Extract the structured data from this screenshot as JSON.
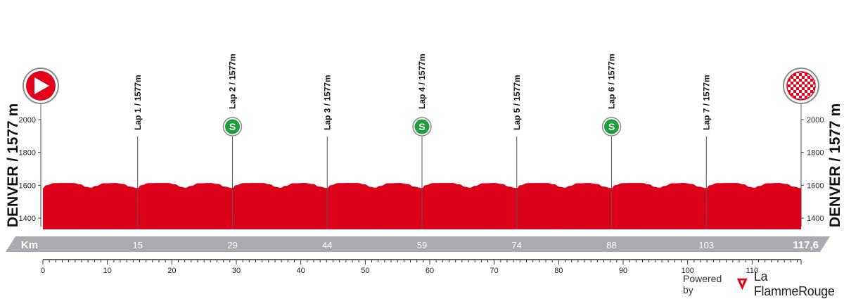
{
  "chart_data": {
    "type": "area",
    "start_label": "DENVER / 1577 m",
    "finish_label": "DENVER / 1577 m",
    "ylim": [
      1330,
      2070
    ],
    "y_ticks": [
      1400,
      1600,
      1800,
      2000
    ],
    "xlim": [
      0,
      117.6
    ],
    "x_ticks": [
      0,
      10,
      20,
      30,
      40,
      50,
      60,
      70,
      80,
      90,
      100,
      110
    ],
    "km_bar_label": "Km",
    "total_distance_label": "117,6",
    "profile": {
      "x": [
        0,
        1,
        3.5,
        6.5,
        9.5,
        11.5,
        13.5,
        14.9,
        16.5,
        19,
        22.5,
        25,
        27,
        29.5
      ],
      "elevation": [
        1583,
        1600,
        1613,
        1614,
        1614,
        1606,
        1590,
        1585,
        1596,
        1612,
        1614,
        1608,
        1592,
        1583
      ],
      "lap_length_km": 14.7
    },
    "laps": [
      {
        "label": "Lap 1 / 1577m",
        "km": 14.7,
        "km_label": "15",
        "sprint": false
      },
      {
        "label": "Lap 2 / 1577m",
        "km": 29.4,
        "km_label": "29",
        "sprint": true
      },
      {
        "label": "Lap 3 / 1577m",
        "km": 44.1,
        "km_label": "44",
        "sprint": false
      },
      {
        "label": "Lap 4 / 1577m",
        "km": 58.8,
        "km_label": "59",
        "sprint": true
      },
      {
        "label": "Lap 5 / 1577m",
        "km": 73.5,
        "km_label": "74",
        "sprint": false
      },
      {
        "label": "Lap 6 / 1577m",
        "km": 88.2,
        "km_label": "88",
        "sprint": true
      },
      {
        "label": "Lap 7 / 1577m",
        "km": 102.9,
        "km_label": "103",
        "sprint": false
      }
    ],
    "sprint_symbol": "S",
    "colors": {
      "profile_fill": "#e2001a",
      "start_icon": "#e2001a",
      "sprint_icon": "#1e9e3a",
      "km_bar": "#a9abae",
      "brand": "#e2001a"
    }
  },
  "branding": {
    "powered_by": "Powered by",
    "name_part1": "La Flamme",
    "name_part2": "Rouge"
  }
}
